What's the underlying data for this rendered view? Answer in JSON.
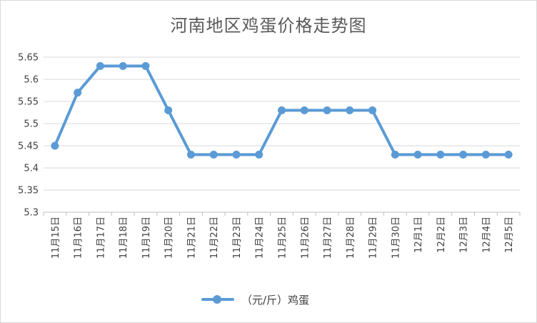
{
  "chart_data": {
    "type": "line",
    "title": "河南地区鸡蛋价格走势图",
    "xlabel": "",
    "ylabel": "",
    "categories": [
      "11月15日",
      "11月16日",
      "11月17日",
      "11月18日",
      "11月19日",
      "11月20日",
      "11月21日",
      "11月22日",
      "11月23日",
      "11月24日",
      "11月25日",
      "11月26日",
      "11月27日",
      "11月28日",
      "11月29日",
      "11月30日",
      "12月1日",
      "12月2日",
      "12月3日",
      "12月4日",
      "12月5日"
    ],
    "series": [
      {
        "name": "（元/斤）鸡蛋",
        "color": "#5b9bd5",
        "values": [
          5.45,
          5.57,
          5.63,
          5.63,
          5.63,
          5.53,
          5.43,
          5.43,
          5.43,
          5.43,
          5.53,
          5.53,
          5.53,
          5.53,
          5.53,
          5.43,
          5.43,
          5.43,
          5.43,
          5.43,
          5.43
        ]
      }
    ],
    "ylim": [
      5.3,
      5.65
    ],
    "yticks": [
      "5.3",
      "5.35",
      "5.4",
      "5.45",
      "5.5",
      "5.55",
      "5.6",
      "5.65"
    ],
    "grid": true,
    "legend_position": "bottom"
  }
}
